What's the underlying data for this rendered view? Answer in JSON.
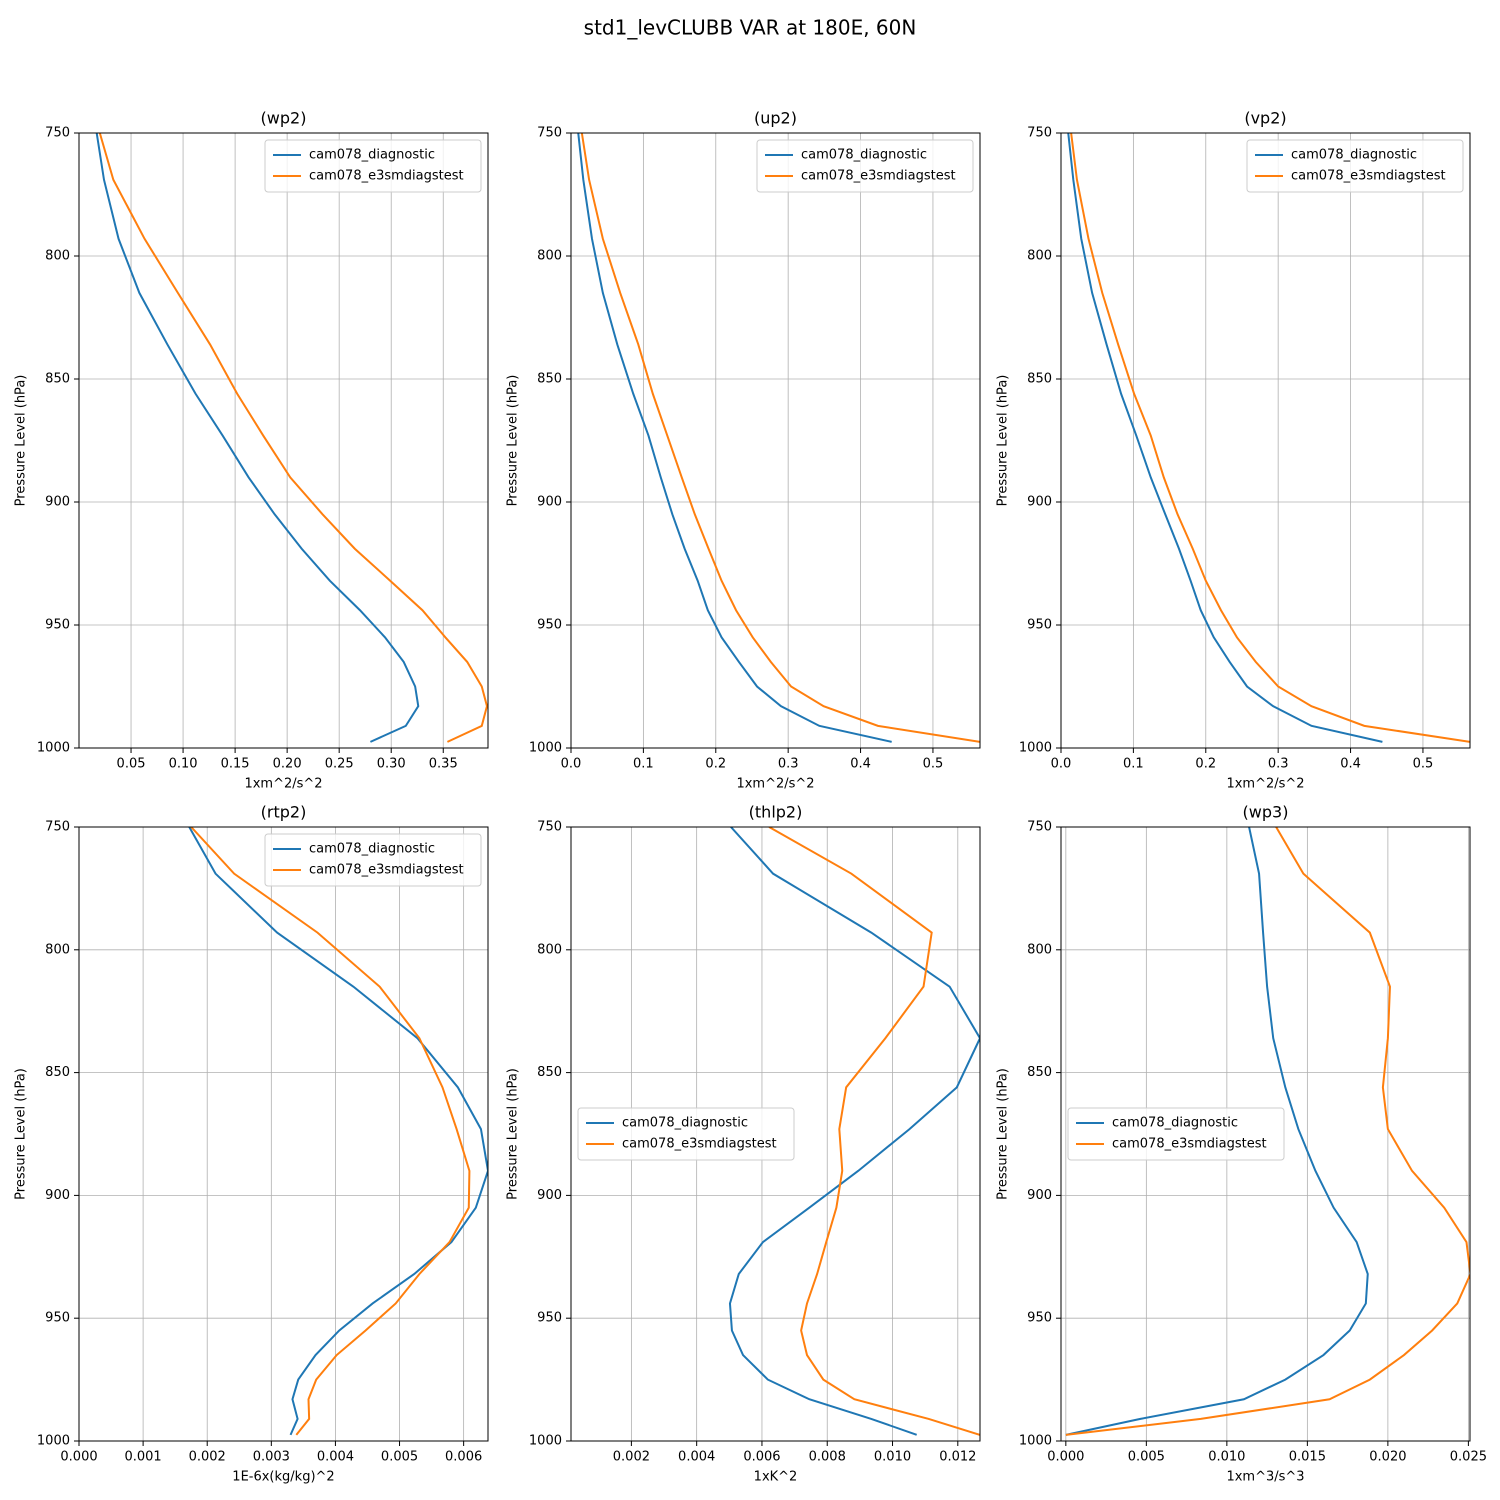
{
  "title": "std1_levCLUBB VAR at 180E, 60N",
  "chart_data": [
    {
      "type": "line",
      "title": "(wp2)",
      "xlabel": "1xm^2/s^2",
      "ylabel": "Pressure Level (hPa)",
      "grid": true,
      "legend": "upper right",
      "y_inverted": true,
      "y": [
        750,
        769,
        793,
        815,
        836,
        856,
        873,
        890,
        905,
        919,
        932,
        944,
        955,
        965,
        975,
        983,
        991,
        997.5
      ],
      "xlim": [
        0,
        0.393
      ],
      "xticks": [
        0.05,
        {
          "value": 0.1,
          "label": "0.10"
        },
        0.15,
        {
          "value": 0.2,
          "label": "0.20"
        },
        0.25,
        {
          "value": 0.3,
          "label": "0.30"
        },
        0.35
      ],
      "ylim": [
        750,
        1000
      ],
      "yticks": [
        750,
        800,
        850,
        900,
        950,
        1000
      ],
      "series": [
        {
          "name": "cam078_diagnostic",
          "color": "#1f77b4",
          "values": [
            0.017,
            0.024,
            0.038,
            0.058,
            0.085,
            0.112,
            0.138,
            0.163,
            0.188,
            0.214,
            0.241,
            0.27,
            0.294,
            0.312,
            0.323,
            0.326,
            0.314,
            0.28
          ]
        },
        {
          "name": "cam078_e3smdiagstest",
          "color": "#ff7f0e",
          "values": [
            0.02,
            0.033,
            0.063,
            0.095,
            0.126,
            0.152,
            0.177,
            0.203,
            0.234,
            0.265,
            0.299,
            0.33,
            0.352,
            0.373,
            0.387,
            0.392,
            0.387,
            0.354
          ]
        }
      ]
    },
    {
      "type": "line",
      "title": "(up2)",
      "xlabel": "1xm^2/s^2",
      "ylabel": "Pressure Level (hPa)",
      "grid": true,
      "legend": "upper right",
      "y_inverted": true,
      "y": [
        750,
        769,
        793,
        815,
        836,
        856,
        873,
        890,
        905,
        919,
        932,
        944,
        955,
        965,
        975,
        983,
        991,
        997.5
      ],
      "xlim": [
        0,
        0.565
      ],
      "xticks": [
        {
          "value": 0,
          "label": "0.0"
        },
        0.1,
        0.2,
        0.3,
        0.4,
        0.5
      ],
      "ylim": [
        750,
        1000
      ],
      "yticks": [
        750,
        800,
        850,
        900,
        950,
        1000
      ],
      "series": [
        {
          "name": "cam078_diagnostic",
          "color": "#1f77b4",
          "values": [
            0.01,
            0.017,
            0.029,
            0.044,
            0.064,
            0.086,
            0.107,
            0.124,
            0.14,
            0.157,
            0.175,
            0.189,
            0.208,
            0.232,
            0.257,
            0.29,
            0.343,
            0.443
          ]
        },
        {
          "name": "cam078_e3smdiagstest",
          "color": "#ff7f0e",
          "values": [
            0.015,
            0.025,
            0.044,
            0.068,
            0.093,
            0.113,
            0.133,
            0.153,
            0.171,
            0.19,
            0.208,
            0.228,
            0.251,
            0.276,
            0.304,
            0.349,
            0.424,
            0.565
          ]
        }
      ]
    },
    {
      "type": "line",
      "title": "(vp2)",
      "xlabel": "1xm^2/s^2",
      "ylabel": "Pressure Level (hPa)",
      "grid": true,
      "legend": "upper right",
      "y_inverted": true,
      "y": [
        750,
        769,
        793,
        815,
        836,
        856,
        873,
        890,
        905,
        919,
        932,
        944,
        955,
        965,
        975,
        983,
        991,
        997.5
      ],
      "xlim": [
        0,
        0.565
      ],
      "xticks": [
        {
          "value": 0,
          "label": "0.0"
        },
        0.1,
        0.2,
        0.3,
        0.4,
        0.5
      ],
      "ylim": [
        750,
        1000
      ],
      "yticks": [
        750,
        800,
        850,
        900,
        950,
        1000
      ],
      "series": [
        {
          "name": "cam078_diagnostic",
          "color": "#1f77b4",
          "values": [
            0.01,
            0.017,
            0.028,
            0.043,
            0.063,
            0.083,
            0.104,
            0.124,
            0.144,
            0.163,
            0.179,
            0.193,
            0.211,
            0.233,
            0.257,
            0.293,
            0.346,
            0.444
          ]
        },
        {
          "name": "cam078_e3smdiagstest",
          "color": "#ff7f0e",
          "values": [
            0.014,
            0.022,
            0.038,
            0.057,
            0.079,
            0.101,
            0.124,
            0.142,
            0.161,
            0.182,
            0.2,
            0.221,
            0.243,
            0.269,
            0.3,
            0.346,
            0.419,
            0.565
          ]
        }
      ]
    },
    {
      "type": "line",
      "title": "(rtp2)",
      "xlabel": "1E-6x(kg/kg)^2",
      "ylabel": "Pressure Level (hPa)",
      "grid": true,
      "legend": "upper right",
      "y_inverted": true,
      "y": [
        750,
        769,
        793,
        815,
        836,
        856,
        873,
        890,
        905,
        919,
        932,
        944,
        955,
        965,
        975,
        983,
        991,
        997.5
      ],
      "xlim": [
        0,
        0.00638
      ],
      "xticks": [
        {
          "value": 0,
          "label": "0.000"
        },
        0.001,
        0.002,
        0.003,
        0.004,
        0.005,
        0.006
      ],
      "ylim": [
        750,
        1000
      ],
      "yticks": [
        750,
        800,
        850,
        900,
        950,
        1000
      ],
      "series": [
        {
          "name": "cam078_diagnostic",
          "color": "#1f77b4",
          "values": [
            0.00172,
            0.00213,
            0.00309,
            0.00428,
            0.00528,
            0.00591,
            0.00627,
            0.00638,
            0.00619,
            0.00581,
            0.00523,
            0.00458,
            0.00406,
            0.00369,
            0.00342,
            0.00333,
            0.00341,
            0.0033
          ]
        },
        {
          "name": "cam078_e3smdiagstest",
          "color": "#ff7f0e",
          "values": [
            0.00175,
            0.00242,
            0.00372,
            0.00469,
            0.00531,
            0.00567,
            0.00589,
            0.00609,
            0.00608,
            0.00578,
            0.00531,
            0.00494,
            0.00447,
            0.00402,
            0.0037,
            0.00358,
            0.00359,
            0.00339
          ]
        }
      ]
    },
    {
      "type": "line",
      "title": "(thlp2)",
      "xlabel": "1xK^2",
      "ylabel": "Pressure Level (hPa)",
      "grid": true,
      "legend": "center left",
      "y_inverted": true,
      "y": [
        750,
        769,
        793,
        815,
        836,
        856,
        873,
        890,
        905,
        919,
        932,
        944,
        955,
        965,
        975,
        983,
        991,
        997.5
      ],
      "xlim": [
        0.00015,
        0.01268
      ],
      "xticks": [
        0.002,
        0.004,
        0.006,
        0.008,
        {
          "value": 0.01,
          "label": "0.010"
        },
        0.012
      ],
      "ylim": [
        750,
        1000
      ],
      "yticks": [
        750,
        800,
        850,
        900,
        950,
        1000
      ],
      "series": [
        {
          "name": "cam078_diagnostic",
          "color": "#1f77b4",
          "values": [
            0.00505,
            0.00634,
            0.00935,
            0.01175,
            0.01268,
            0.01197,
            0.01052,
            0.00895,
            0.00745,
            0.00603,
            0.00529,
            0.00502,
            0.00508,
            0.00542,
            0.00618,
            0.00745,
            0.00935,
            0.01074
          ]
        },
        {
          "name": "cam078_e3smdiagstest",
          "color": "#ff7f0e",
          "values": [
            0.00622,
            0.00874,
            0.0112,
            0.01095,
            0.00978,
            0.00858,
            0.00837,
            0.00846,
            0.00828,
            0.00797,
            0.00769,
            0.00738,
            0.0072,
            0.00738,
            0.00788,
            0.00883,
            0.01111,
            0.01268
          ]
        }
      ]
    },
    {
      "type": "line",
      "title": "(wp3)",
      "xlabel": "1xm^3/s^3",
      "ylabel": "Pressure Level (hPa)",
      "grid": true,
      "legend": "center left",
      "y_inverted": true,
      "y": [
        750,
        769,
        793,
        815,
        836,
        856,
        873,
        890,
        905,
        919,
        932,
        944,
        955,
        965,
        975,
        983,
        991,
        997.5
      ],
      "xlim": [
        -0.0003,
        0.0251
      ],
      "xticks": [
        {
          "value": 0,
          "label": "0.000"
        },
        0.005,
        {
          "value": 0.01,
          "label": "0.010"
        },
        0.015,
        {
          "value": 0.02,
          "label": "0.020"
        },
        0.025
      ],
      "ylim": [
        750,
        1000
      ],
      "yticks": [
        750,
        800,
        850,
        900,
        950,
        1000
      ],
      "series": [
        {
          "name": "cam078_diagnostic",
          "color": "#1f77b4",
          "values": [
            0.01138,
            0.012,
            0.01225,
            0.0125,
            0.01288,
            0.01363,
            0.01444,
            0.0155,
            0.01663,
            0.01806,
            0.01875,
            0.01863,
            0.01763,
            0.016,
            0.01363,
            0.01106,
            0.00463,
            0
          ]
        },
        {
          "name": "cam078_e3smdiagstest",
          "color": "#ff7f0e",
          "values": [
            0.01306,
            0.01475,
            0.01888,
            0.02013,
            0.02,
            0.01969,
            0.02,
            0.0215,
            0.0235,
            0.02488,
            0.02513,
            0.02431,
            0.02275,
            0.021,
            0.01888,
            0.01638,
            0.00838,
            0
          ]
        }
      ]
    }
  ]
}
